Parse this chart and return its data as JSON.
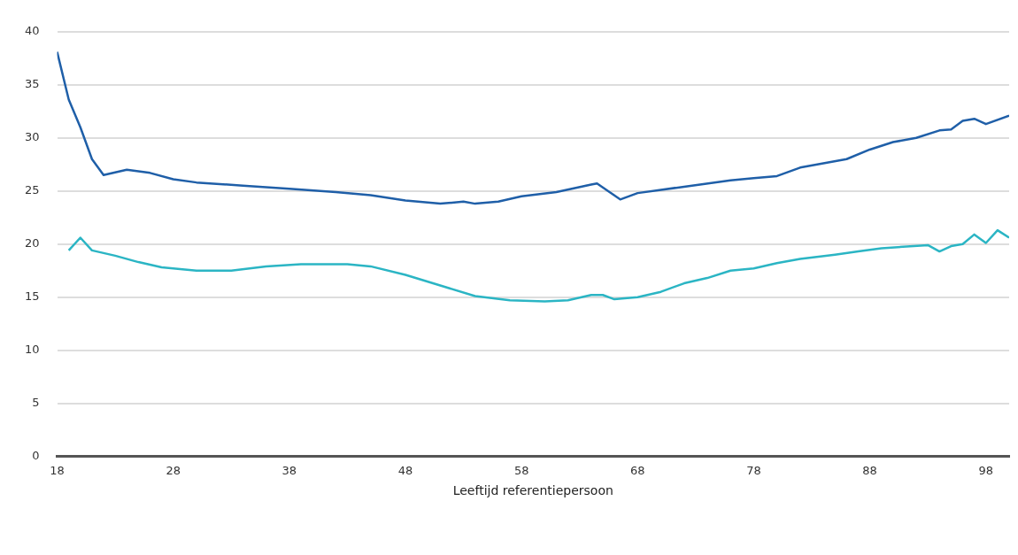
{
  "chart_data": {
    "type": "line",
    "xlabel": "Leeftijd referentiepersoon",
    "xlim": [
      18,
      100
    ],
    "xticks": [
      18,
      28,
      38,
      48,
      58,
      68,
      78,
      88,
      98
    ],
    "ylim": [
      0,
      40
    ],
    "yticks": [
      0,
      5,
      10,
      15,
      20,
      25,
      30,
      35,
      40
    ],
    "grid": "y",
    "legend": false,
    "marker": "none",
    "line_style": "solid",
    "series": [
      {
        "color": "#1f5fa8",
        "x": [
          18,
          19,
          20,
          21,
          22,
          24,
          26,
          28,
          30,
          34,
          38,
          42,
          45,
          48,
          51,
          53,
          54,
          56,
          58,
          61,
          64,
          64.5,
          66.5,
          68,
          72,
          76,
          78,
          80,
          82,
          86,
          88,
          90,
          92,
          94,
          95,
          96,
          97,
          98,
          100
        ],
        "values": [
          38.1,
          33.6,
          31,
          28,
          26.5,
          27,
          26.7,
          26.1,
          25.8,
          25.5,
          25.2,
          24.9,
          24.6,
          24.1,
          23.8,
          24,
          23.8,
          24,
          24.5,
          24.9,
          25.6,
          25.7,
          24.2,
          24.8,
          25.4,
          26,
          26.2,
          26.4,
          27.2,
          28,
          28.9,
          29.6,
          30,
          30.7,
          30.8,
          31.6,
          31.8,
          31.3,
          32.1
        ]
      },
      {
        "color": "#2bb5c4",
        "x": [
          19,
          20,
          21,
          23,
          25,
          27,
          30,
          33,
          36,
          39,
          43,
          45,
          48,
          51,
          54,
          57,
          60,
          62,
          64,
          65,
          66,
          68,
          70,
          72,
          74,
          76,
          78,
          80,
          82,
          85,
          87,
          89,
          93,
          94,
          95,
          96,
          97,
          98,
          99,
          100
        ],
        "values": [
          19.4,
          20.6,
          19.4,
          18.9,
          18.3,
          17.8,
          17.5,
          17.5,
          17.9,
          18.1,
          18.1,
          17.9,
          17.1,
          16.1,
          15.1,
          14.7,
          14.6,
          14.7,
          15.2,
          15.2,
          14.8,
          15,
          15.5,
          16.3,
          16.8,
          17.5,
          17.7,
          18.2,
          18.6,
          19,
          19.3,
          19.6,
          19.9,
          19.3,
          19.8,
          20,
          20.9,
          20.1,
          21.3,
          20.6
        ]
      }
    ]
  }
}
